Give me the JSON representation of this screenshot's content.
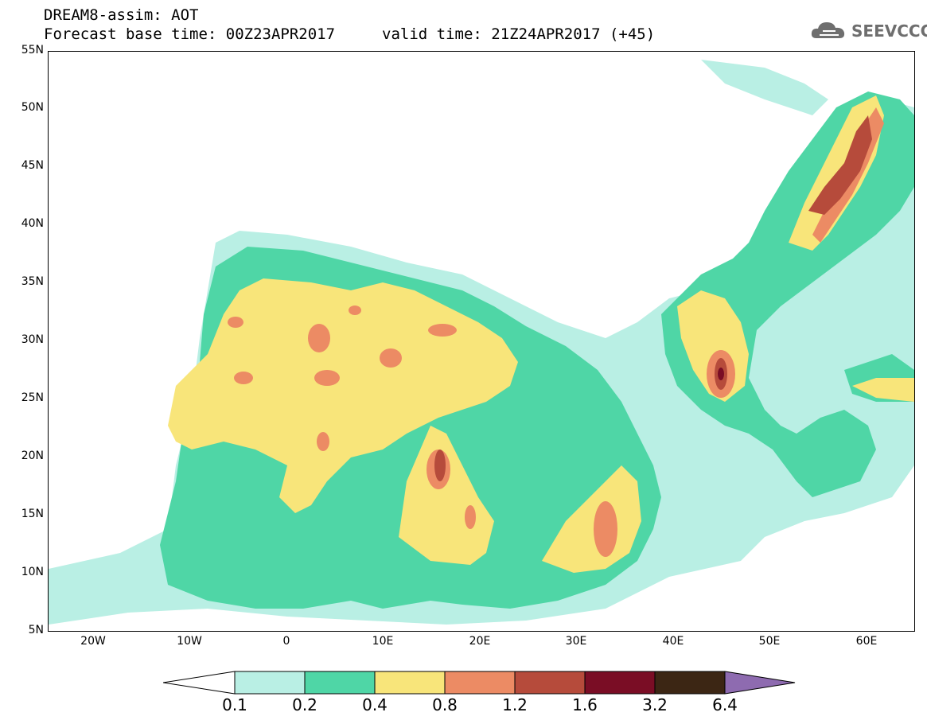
{
  "header": {
    "line1": "DREAM8-assim: AOT",
    "line2a": "Forecast base time: 00Z23APR2017",
    "line2b": "valid time: 21Z24APR2017 (+45)"
  },
  "logo": {
    "text": "SEEVCCC",
    "color": "#6e6e6e"
  },
  "axes": {
    "y_ticks": [
      "55N",
      "50N",
      "45N",
      "40N",
      "35N",
      "30N",
      "25N",
      "20N",
      "15N",
      "10N",
      "5N"
    ],
    "x_ticks": [
      "20W",
      "10W",
      "0",
      "10E",
      "20E",
      "30E",
      "40E",
      "50E",
      "60E"
    ]
  },
  "colorbar": {
    "labels": [
      "0.1",
      "0.2",
      "0.4",
      "0.8",
      "1.2",
      "1.6",
      "3.2",
      "6.4"
    ],
    "colors": [
      "#ffffff",
      "#b9efe4",
      "#4fd6a6",
      "#f8e57a",
      "#ec8b64",
      "#b64b3b",
      "#7a0d25",
      "#3c2614",
      "#8e6bb0"
    ]
  }
}
